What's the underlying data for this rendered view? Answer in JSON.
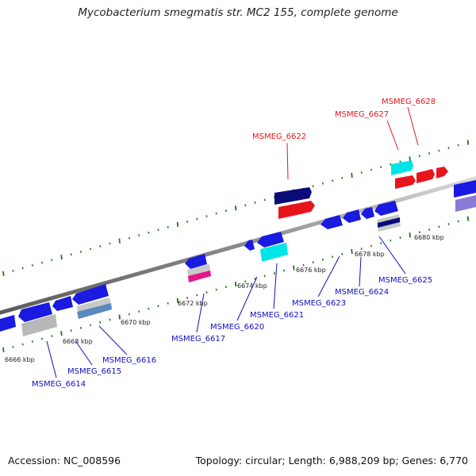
{
  "title": "Mycobacterium smegmatis str. MC2 155, complete genome",
  "footer": {
    "accession": "Accession: NC_008596",
    "summary": "Topology: circular; Length: 6,988,209 bp; Genes: 6,770"
  },
  "tick_labels": [
    "6666 kbp",
    "6668 kbp",
    "6670 kbp",
    "6672 kbp",
    "6674 kbp",
    "6676 kbp",
    "6678 kbp",
    "6680 kbp"
  ],
  "gene_labels": {
    "forward": [
      "MSMEG_6622",
      "MSMEG_6627",
      "MSMEG_6628"
    ],
    "reverse": [
      "MSMEG_6614",
      "MSMEG_6615",
      "MSMEG_6616",
      "MSMEG_6617",
      "MSMEG_6620",
      "MSMEG_6621",
      "MSMEG_6623",
      "MSMEG_6624",
      "MSMEG_6625"
    ]
  },
  "colors": {
    "forward_label": "#e8141c",
    "reverse_label": "#1010c0",
    "backbone": "#8c8c8c",
    "ticks": "#1a7a1a",
    "cds": "#1a1ae0",
    "rna": "#e8141c",
    "cyan": "#00e5e8",
    "navy": "#0a0a78",
    "gray": "#b8b8b8",
    "steel": "#5a8ac0",
    "pink": "#e8148c",
    "lavender": "#8a7ad8"
  }
}
